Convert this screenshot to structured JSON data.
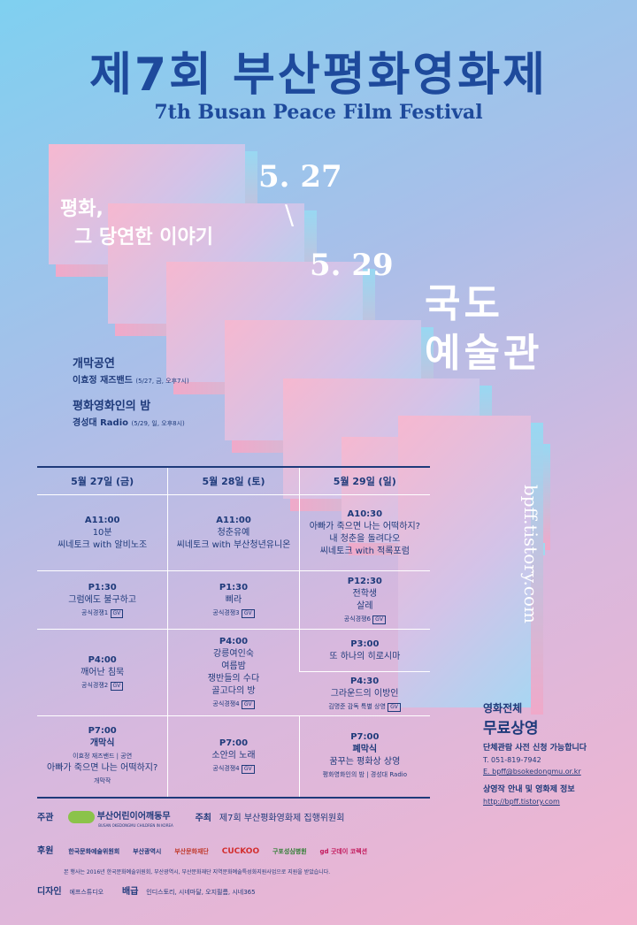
{
  "title_ko": "제7회 부산평화영화제",
  "title_en": "7th Busan Peace Film Festival",
  "tagline": [
    "평화,",
    "그 당연한 이야기"
  ],
  "date_start": "5. 27",
  "date_sep": "\\",
  "date_end": "5. 29",
  "venue": [
    "국도",
    "예술관"
  ],
  "url_vertical": "bpff.tistory.com",
  "events": [
    {
      "heading": "개막공연",
      "detail": "이효정 재즈밴드",
      "note": "(5/27, 금, 오후7시)"
    },
    {
      "heading": "평화영화인의 밤",
      "detail": "경성대 Radio",
      "note": "(5/29, 일, 오후8시)"
    }
  ],
  "schedule": {
    "headers": [
      "5월 27일 (금)",
      "5월 28일 (토)",
      "5월 29일 (일)"
    ],
    "gv": "GV",
    "rows": {
      "r1": {
        "c1": {
          "time": "A11:00",
          "lines": [
            "10분",
            "씨네토크 with 알비노조"
          ]
        },
        "c2": {
          "time": "A11:00",
          "lines": [
            "청춘유예",
            "씨네토크 with 부산청년유니온"
          ]
        },
        "c3": {
          "time": "A10:30",
          "lines": [
            "아빠가 죽으면 나는 어떡하지?",
            "내 청춘을 돌려다오",
            "씨네토크 with 적록포럼"
          ]
        }
      },
      "r2": {
        "c1": {
          "time": "P1:30",
          "title": "그럼에도 불구하고",
          "note": "공식경쟁1"
        },
        "c2": {
          "time": "P1:30",
          "title": "삐라",
          "note": "공식경쟁3"
        },
        "c3": {
          "time": "P12:30",
          "title": "전학생",
          "title2": "살레",
          "note": "공식경쟁6"
        }
      },
      "r3": {
        "c1": {
          "time": "P4:00",
          "title": "깨어난 침묵",
          "note": "공식경쟁2"
        },
        "c2": {
          "time": "P4:00",
          "lines": [
            "강릉여인숙",
            "여름밤",
            "쟁반들의 수다",
            "골고다의 방"
          ],
          "note": "공식경쟁4"
        },
        "c3a": {
          "time": "P3:00",
          "title": "또 하나의 히로시마"
        },
        "c3b": {
          "time": "P4:30",
          "title": "그라운드의 이방인",
          "note": "김명준 감독 특별 상영"
        }
      },
      "r4": {
        "c1": {
          "time": "P7:00",
          "label": "개막식",
          "note1": "이효정 재즈밴드 | 공연",
          "title": "아빠가 죽으면 나는 어떡하지?",
          "note2": "개막작"
        },
        "c2": {
          "time": "P7:00",
          "title": "소안의 노래",
          "note": "공식경쟁4"
        },
        "c3": {
          "time": "P7:00",
          "label": "폐막식",
          "title": "꿈꾸는 평화상 상영",
          "note": "평화영화인의 밤 | 경성대 Radio"
        }
      }
    }
  },
  "free": {
    "line1": "영화전체",
    "line2": "무료상영",
    "line3": "단체관람 사전 신청 가능합니다",
    "tel": "T. 051-819-7942",
    "email": "E. bpff@bsokedongmu.or.kr",
    "info": "상영작 안내 및 영화제 정보",
    "url": "http://bpff.tistory.com"
  },
  "credits": {
    "host_label": "주관",
    "host_name": "부산어린이어깨동무",
    "host_sub": "BUSAN OKEDONGMU CHILDREN IN KOREA",
    "organizer_label": "주최",
    "organizer_name": "제7회 부산평화영화제 집행위원회",
    "support_label": "후원",
    "sponsors": [
      "한국문화예술위원회",
      "부산광역시",
      "부산문화재단",
      "CUCKOO",
      "구포성심병원",
      "gd 굿데이 코렉션"
    ],
    "notice": "본 행사는 2016년 한국문화예술위원회, 부산광역시, 부산문화재단 지역문화예술특성화지원사업으로 지원을 받았습니다.",
    "design_label": "디자인",
    "design_name": "에프스튜디오",
    "dist_label": "배급",
    "dist_names": "인디스토리, 시네마달, 오지필름, 시네365"
  }
}
